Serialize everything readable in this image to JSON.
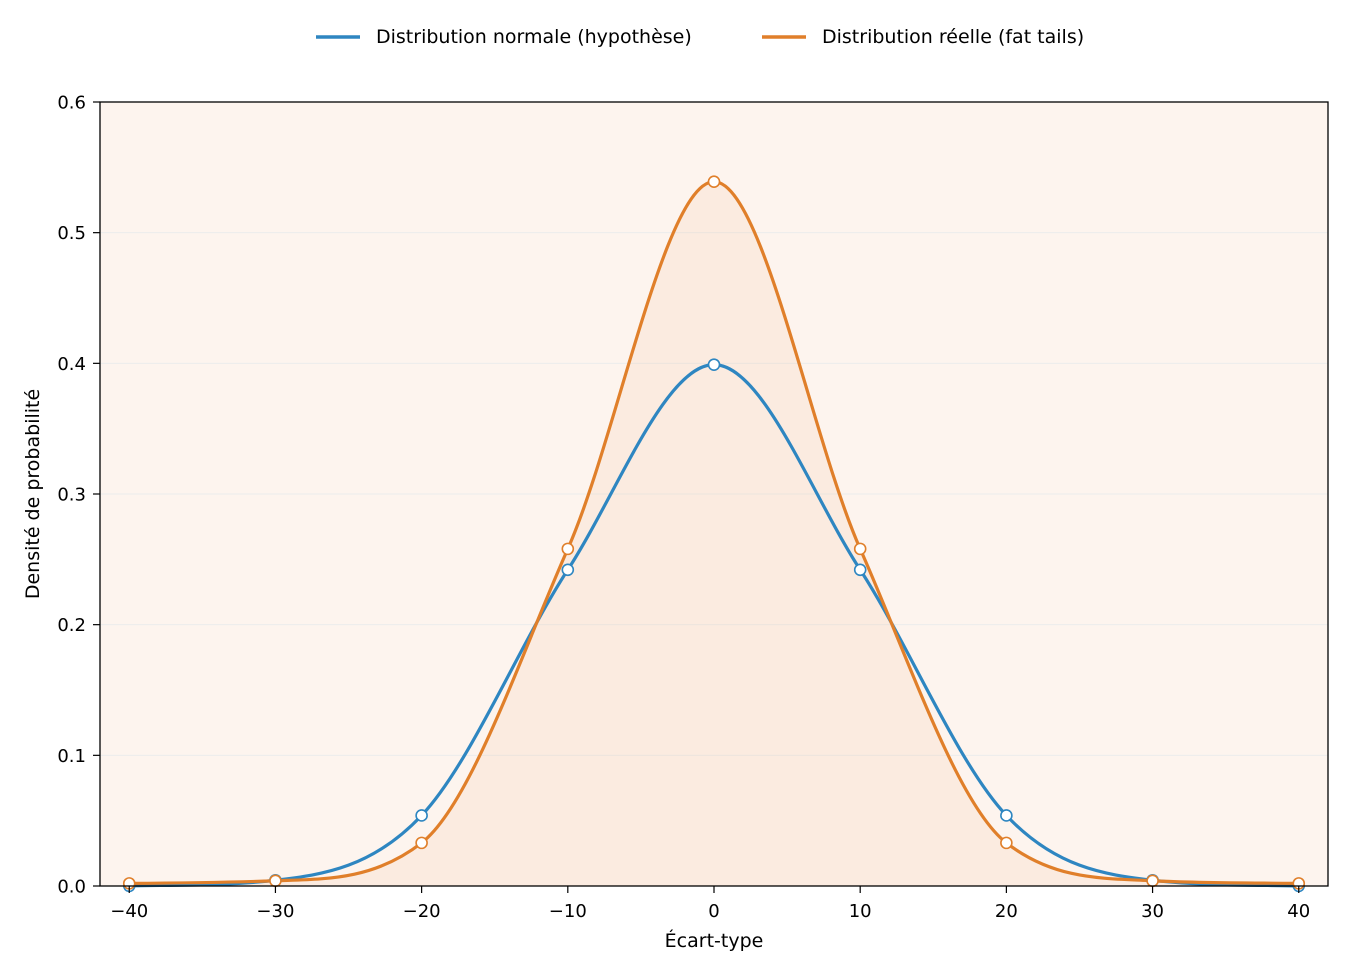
{
  "chart_data": {
    "type": "line",
    "title": "",
    "xlabel": "Écart-type",
    "ylabel": "Densité de probabilité",
    "xlim": [
      -42,
      42
    ],
    "ylim": [
      0,
      0.6
    ],
    "xticks": [
      -40,
      -30,
      -20,
      -10,
      0,
      10,
      20,
      30,
      40
    ],
    "xtick_labels": [
      "−40",
      "−30",
      "−20",
      "−10",
      "0",
      "10",
      "20",
      "30",
      "40"
    ],
    "yticks": [
      0,
      0.1,
      0.2,
      0.3,
      0.4,
      0.5,
      0.6
    ],
    "ytick_labels": [
      "0.0",
      "0.1",
      "0.2",
      "0.3",
      "0.4",
      "0.5",
      "0.6"
    ],
    "grid": "horizontal",
    "legend_position": "top-center",
    "plot_background": "#fdf4ee",
    "x": [
      -40,
      -30,
      -20,
      -10,
      0,
      10,
      20,
      30,
      40
    ],
    "series": [
      {
        "name": "Distribution normale (hypothèse)",
        "color": "#2e86c1",
        "values": [
          0.0001,
          0.0044,
          0.054,
          0.242,
          0.399,
          0.242,
          0.054,
          0.0044,
          0.0001
        ]
      },
      {
        "name": "Distribution réelle (fat tails)",
        "color": "#e07f2a",
        "values": [
          0.002,
          0.004,
          0.033,
          0.258,
          0.539,
          0.258,
          0.033,
          0.004,
          0.002
        ]
      }
    ]
  }
}
